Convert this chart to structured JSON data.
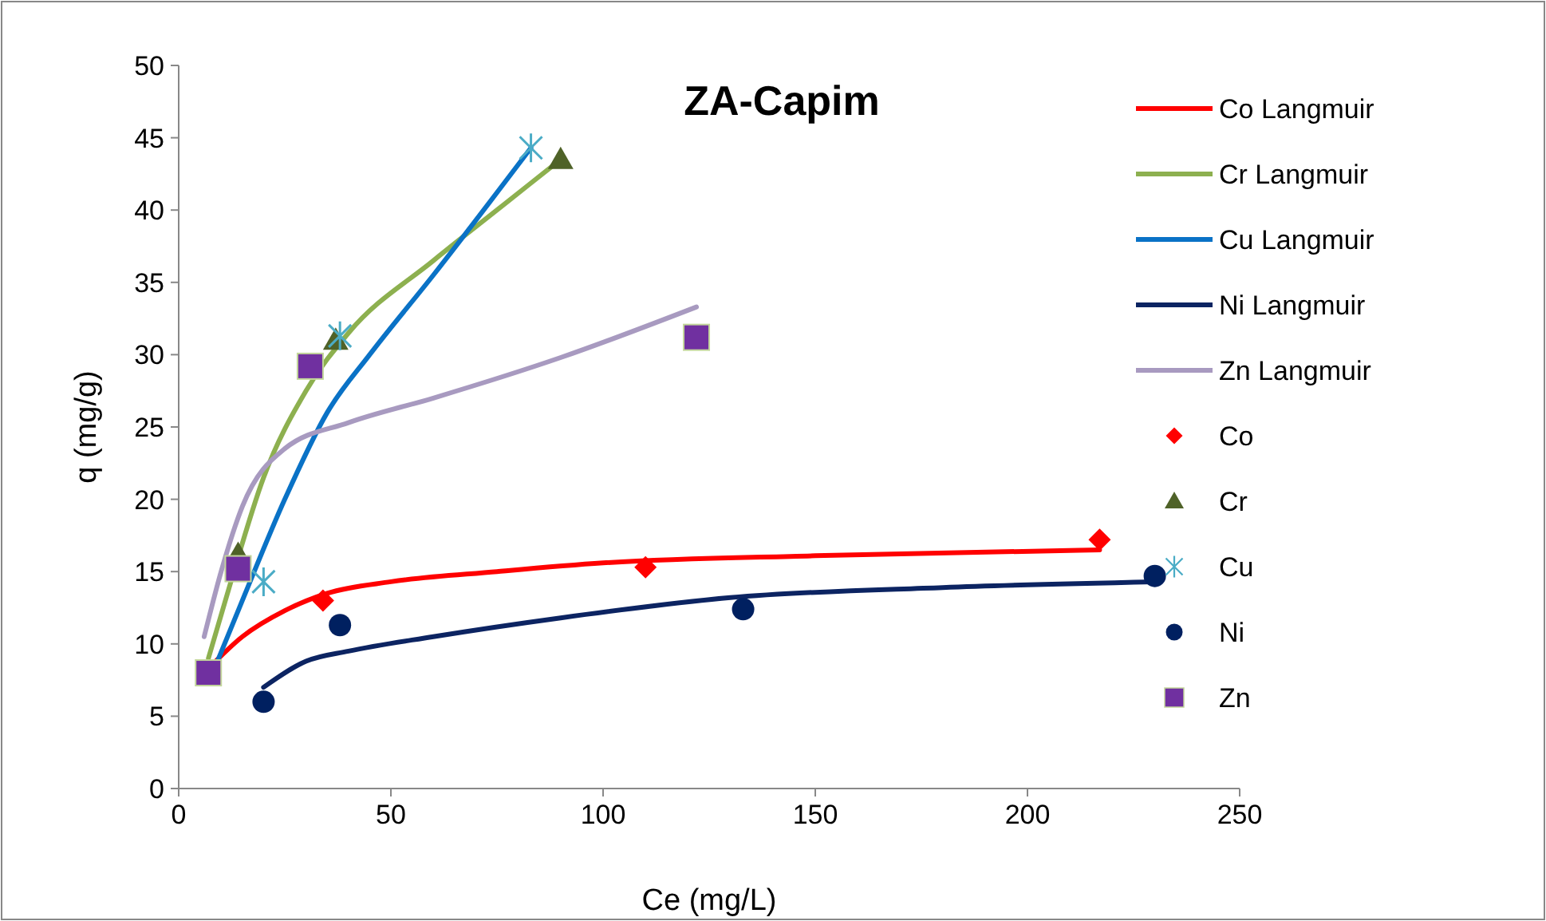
{
  "chart_data": {
    "type": "scatter",
    "title": "ZA-Capim",
    "xlabel": "Ce (mg/L)",
    "ylabel": "q (mg/g)",
    "xlim": [
      0,
      250
    ],
    "ylim": [
      0,
      50
    ],
    "xticks": [
      0,
      50,
      100,
      150,
      200,
      250
    ],
    "yticks": [
      0,
      5,
      10,
      15,
      20,
      25,
      30,
      35,
      40,
      45,
      50
    ],
    "grid": false,
    "legend": "right",
    "series": [
      {
        "name": "Co Langmuir",
        "type": "line",
        "color": "#ff0000",
        "x": [
          7,
          15,
          25,
          35,
          50,
          75,
          100,
          150,
          217
        ],
        "values": [
          8.3,
          10.5,
          12.3,
          13.5,
          14.3,
          15,
          15.6,
          16.1,
          16.5
        ]
      },
      {
        "name": "Cr Langmuir",
        "type": "line",
        "color": "#8db04f",
        "x": [
          7,
          12,
          20,
          30,
          40,
          60,
          75,
          90
        ],
        "values": [
          9,
          14,
          21.5,
          27.5,
          31.5,
          36.5,
          40,
          43.5
        ]
      },
      {
        "name": "Cu Langmuir",
        "type": "line",
        "color": "#0a72c6",
        "x": [
          8,
          15,
          25,
          35,
          45,
          60,
          83
        ],
        "values": [
          8,
          13,
          20,
          26,
          30,
          35.5,
          44.3
        ]
      },
      {
        "name": "Ni Langmuir",
        "type": "line",
        "color": "#0c2462",
        "x": [
          20,
          30,
          40,
          60,
          90,
          130,
          180,
          230
        ],
        "values": [
          7,
          8.8,
          9.5,
          10.5,
          11.8,
          13.2,
          13.9,
          14.3
        ]
      },
      {
        "name": "Zn Langmuir",
        "type": "line",
        "color": "#a89ac0",
        "x": [
          6,
          10,
          15,
          25,
          40,
          60,
          90,
          122
        ],
        "values": [
          10.5,
          15,
          19.5,
          23.5,
          25.3,
          27,
          29.8,
          33.3
        ]
      },
      {
        "name": "Co",
        "color": "#ff0000",
        "marker": "diamond",
        "x": [
          34,
          110,
          217
        ],
        "values": [
          13,
          15.3,
          17.2
        ]
      },
      {
        "name": "Cr",
        "color": "#4f6228",
        "marker": "triangle",
        "x": [
          14,
          37,
          90
        ],
        "values": [
          16.2,
          31,
          43.5
        ]
      },
      {
        "name": "Cu",
        "color": "#4bacc6",
        "marker": "cross",
        "x": [
          20,
          38,
          83
        ],
        "values": [
          14.3,
          31.3,
          44.3
        ]
      },
      {
        "name": "Ni",
        "color": "#002060",
        "marker": "circle",
        "x": [
          20,
          38,
          133,
          230
        ],
        "values": [
          6,
          11.3,
          12.4,
          14.7
        ]
      },
      {
        "name": "Zn",
        "color": "#7030a0",
        "marker": "square",
        "x": [
          7,
          14,
          31,
          122
        ],
        "values": [
          8,
          15.2,
          29.2,
          31.2
        ]
      }
    ]
  }
}
